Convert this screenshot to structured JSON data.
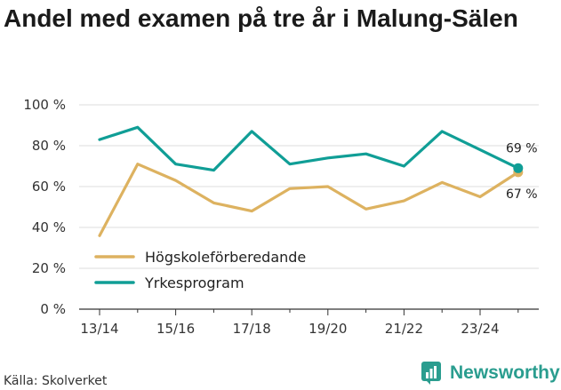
{
  "title": "Andel med examen på tre år i Malung-Sälen",
  "source": "Källa: Skolverket",
  "brand": "Newsworthy",
  "colors": {
    "hog": "#ddb260",
    "yrk": "#109e96",
    "grid": "#dddddd",
    "axis": "#333333",
    "brand": "#2a9d8f"
  },
  "chart_data": {
    "type": "line",
    "title": "Andel med examen på tre år i Malung-Sälen",
    "xlabel": "",
    "ylabel": "",
    "ylim": [
      0,
      100
    ],
    "yticks": [
      0,
      20,
      40,
      60,
      80,
      100
    ],
    "ytick_labels": [
      "0 %",
      "20 %",
      "40 %",
      "60 %",
      "80 %",
      "100 %"
    ],
    "categories": [
      "13/14",
      "14/15",
      "15/16",
      "16/17",
      "17/18",
      "18/19",
      "19/20",
      "20/21",
      "21/22",
      "22/23",
      "23/24",
      "24/25"
    ],
    "xtick_labels": [
      "13/14",
      "15/16",
      "17/18",
      "19/20",
      "21/22",
      "23/24"
    ],
    "series": [
      {
        "name": "Högskoleförberedande",
        "color": "#ddb260",
        "values": [
          36,
          71,
          63,
          52,
          48,
          59,
          60,
          49,
          53,
          62,
          55,
          67
        ],
        "end_label": "67 %"
      },
      {
        "name": "Yrkesprogram",
        "color": "#109e96",
        "values": [
          83,
          89,
          71,
          68,
          87,
          71,
          74,
          76,
          70,
          87,
          78,
          69
        ],
        "end_label": "69 %"
      }
    ],
    "legend": [
      "Högskoleförberedande",
      "Yrkesprogram"
    ],
    "legend_position": "bottom-left",
    "grid": true
  }
}
